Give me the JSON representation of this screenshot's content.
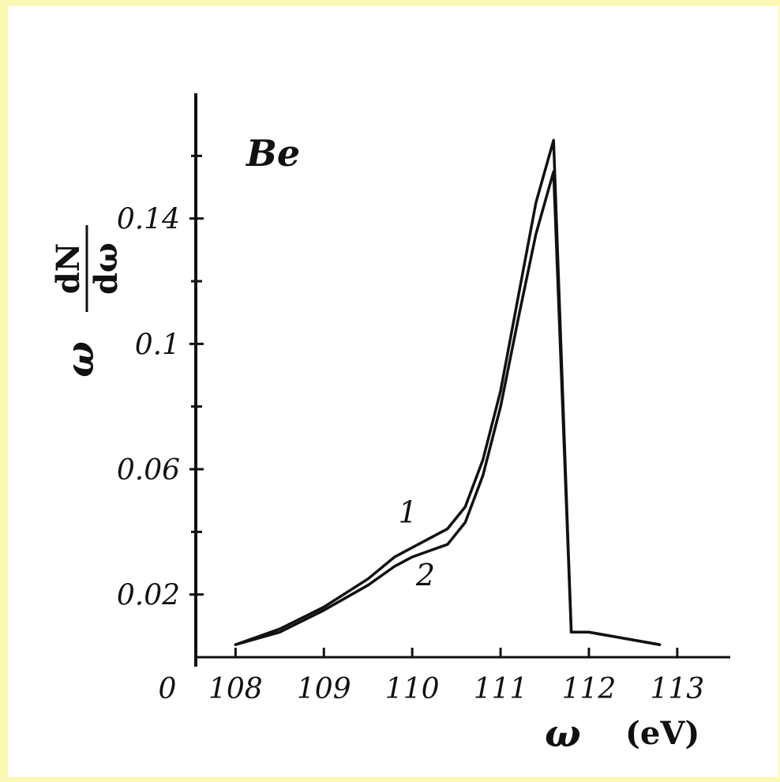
{
  "chart_data": {
    "type": "line",
    "title": "Be",
    "xlabel_symbol": "ω",
    "xlabel_unit": "(eV)",
    "ylabel_prefix": "ω",
    "ylabel_num": "dN",
    "ylabel_den": "dω",
    "xlim": [
      107.55,
      113.6
    ],
    "ylim": [
      0,
      0.18
    ],
    "origin_label": "0",
    "x_ticks": [
      {
        "value": 108,
        "label": "108"
      },
      {
        "value": 109,
        "label": "109"
      },
      {
        "value": 110,
        "label": "110"
      },
      {
        "value": 111,
        "label": "111"
      },
      {
        "value": 112,
        "label": "112"
      },
      {
        "value": 113,
        "label": "113"
      }
    ],
    "y_ticks": [
      {
        "value": 0.02,
        "label": "0.02"
      },
      {
        "value": 0.06,
        "label": "0.06"
      },
      {
        "value": 0.1,
        "label": "0.1"
      },
      {
        "value": 0.14,
        "label": "0.14"
      }
    ],
    "y_minor_ticks": [
      0.04,
      0.08,
      0.12,
      0.16
    ],
    "series": [
      {
        "name": "1",
        "x": [
          108.0,
          108.5,
          109.0,
          109.5,
          109.8,
          110.0,
          110.2,
          110.4,
          110.6,
          110.8,
          111.0,
          111.2,
          111.4,
          111.6,
          111.8,
          112.0,
          112.4,
          112.8
        ],
        "y": [
          0.004,
          0.009,
          0.016,
          0.025,
          0.032,
          0.035,
          0.038,
          0.041,
          0.048,
          0.063,
          0.085,
          0.115,
          0.145,
          0.165,
          0.008,
          0.008,
          0.006,
          0.004
        ]
      },
      {
        "name": "2",
        "x": [
          108.0,
          108.5,
          109.0,
          109.5,
          109.8,
          110.0,
          110.2,
          110.4,
          110.6,
          110.8,
          111.0,
          111.2,
          111.4,
          111.6,
          111.8,
          112.0,
          112.4,
          112.8
        ],
        "y": [
          0.004,
          0.008,
          0.015,
          0.023,
          0.029,
          0.032,
          0.034,
          0.036,
          0.043,
          0.058,
          0.08,
          0.108,
          0.135,
          0.155,
          0.008,
          0.008,
          0.006,
          0.004
        ]
      }
    ],
    "annotations": [
      {
        "text": "1",
        "x": 109.95,
        "y": 0.043
      },
      {
        "text": "2",
        "x": 110.15,
        "y": 0.023
      }
    ]
  }
}
